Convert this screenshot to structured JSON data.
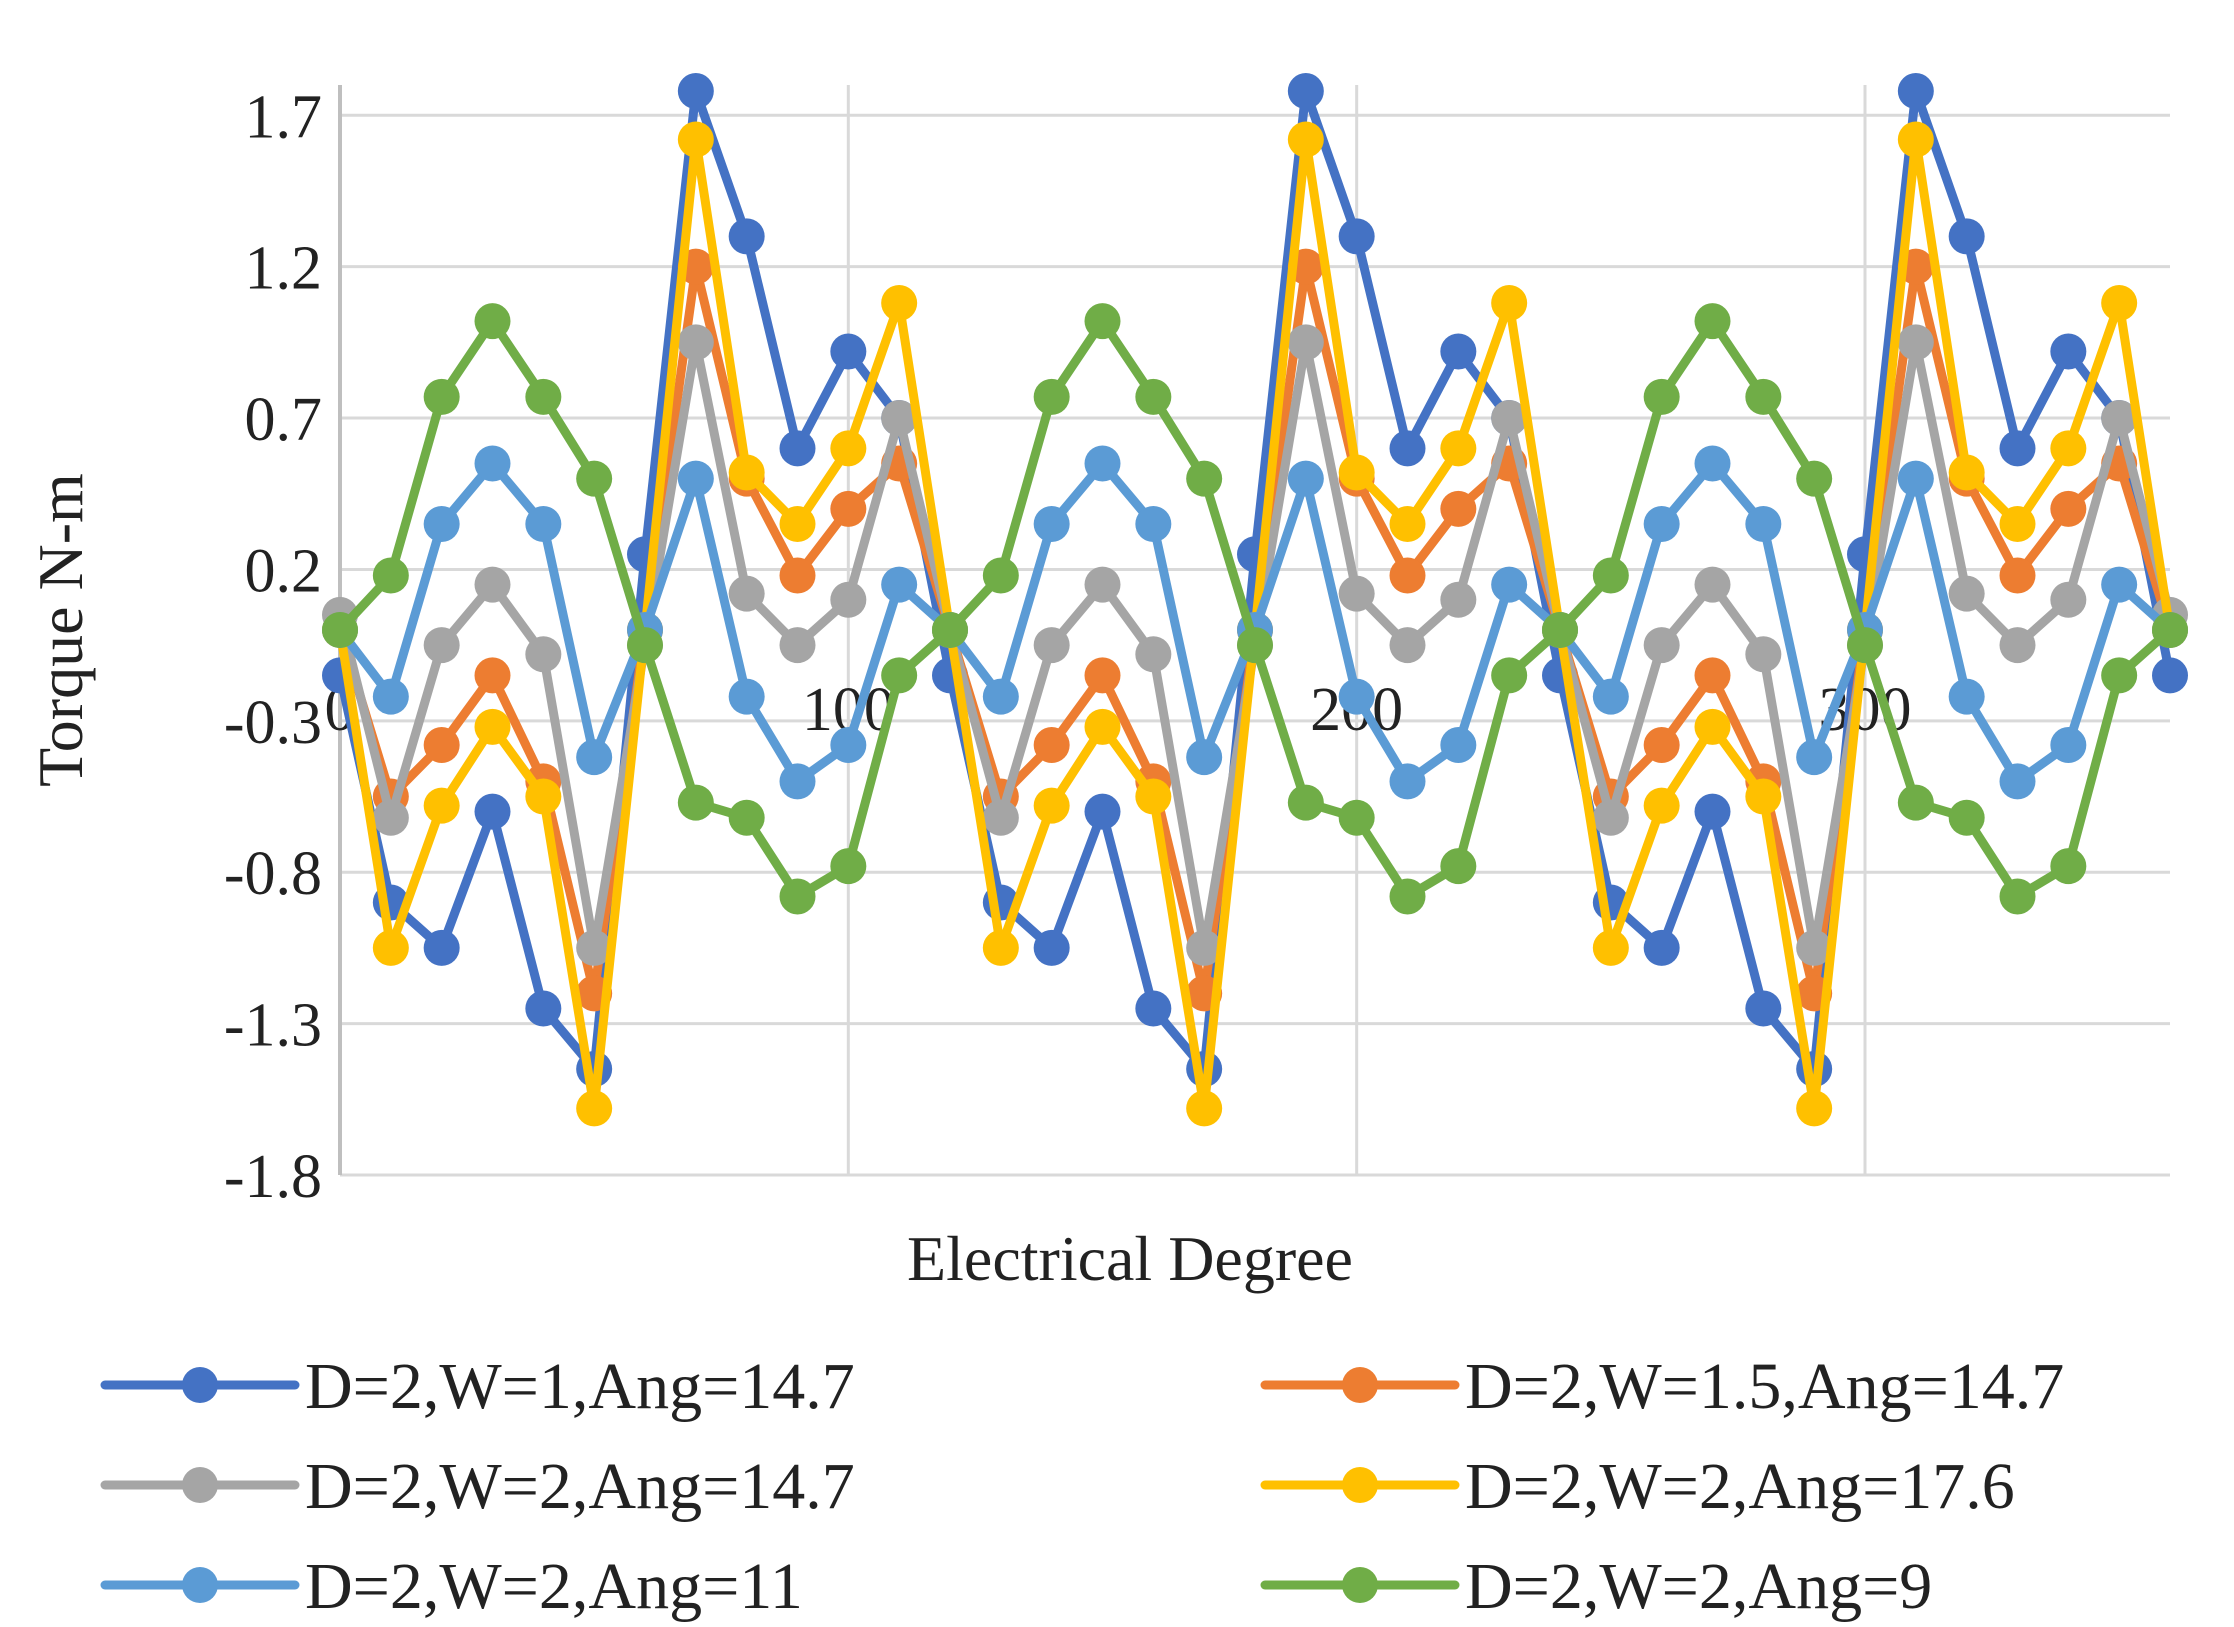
{
  "chart_data": {
    "type": "line",
    "title": "",
    "xlabel": "Electrical Degree",
    "ylabel": "Torque N-m",
    "xlim": [
      0,
      360
    ],
    "ylim": [
      -1.8,
      1.8
    ],
    "xticks": [
      0,
      100,
      200,
      300
    ],
    "yticks": [
      -1.8,
      -1.3,
      -0.8,
      -0.3,
      0.2,
      0.7,
      1.2,
      1.7
    ],
    "ytick_labels": [
      "-1.8",
      "-1.3",
      "-0.8",
      "-0.3",
      "0.2",
      "0.7",
      "1.2",
      "1.7"
    ],
    "xtick_labels": [
      "0",
      "100",
      "200",
      "300"
    ],
    "grid": true,
    "legend_position": "bottom",
    "x": [
      0,
      10,
      20,
      30,
      40,
      50,
      60,
      70,
      80,
      90,
      100,
      110,
      120,
      130,
      140,
      150,
      160,
      170,
      180,
      190,
      200,
      210,
      220,
      230,
      240,
      250,
      260,
      270,
      280,
      290,
      300,
      310,
      320,
      330,
      340,
      350,
      360
    ],
    "series": [
      {
        "name": "D=2,W=1,Ang=14.7",
        "color": "#4472C4",
        "values": [
          -0.15,
          -0.9,
          -1.05,
          -0.6,
          -1.25,
          -1.45,
          0.25,
          1.78,
          1.3,
          0.6,
          0.92,
          0.7,
          -0.15,
          -0.9,
          -1.05,
          -0.6,
          -1.25,
          -1.45,
          0.25,
          1.78,
          1.3,
          0.6,
          0.92,
          0.7,
          -0.15,
          -0.9,
          -1.05,
          -0.6,
          -1.25,
          -1.45,
          0.25,
          1.78,
          1.3,
          0.6,
          0.92,
          0.7,
          -0.15
        ]
      },
      {
        "name": "D=2,W=1.5,Ang=14.7",
        "color": "#ED7D31",
        "values": [
          0.0,
          -0.55,
          -0.38,
          -0.15,
          -0.5,
          -1.2,
          0.0,
          1.2,
          0.5,
          0.18,
          0.4,
          0.55,
          0.0,
          -0.55,
          -0.38,
          -0.15,
          -0.5,
          -1.2,
          0.0,
          1.2,
          0.5,
          0.18,
          0.4,
          0.55,
          0.0,
          -0.55,
          -0.38,
          -0.15,
          -0.5,
          -1.2,
          0.0,
          1.2,
          0.5,
          0.18,
          0.4,
          0.55,
          0.0
        ]
      },
      {
        "name": "D=2,W=2,Ang=14.7",
        "color": "#A5A5A5",
        "values": [
          0.05,
          -0.62,
          -0.05,
          0.15,
          -0.08,
          -1.05,
          -0.05,
          0.95,
          0.12,
          -0.05,
          0.1,
          0.7,
          0.0,
          -0.62,
          -0.05,
          0.15,
          -0.08,
          -1.05,
          -0.05,
          0.95,
          0.12,
          -0.05,
          0.1,
          0.7,
          0.0,
          -0.62,
          -0.05,
          0.15,
          -0.08,
          -1.05,
          -0.05,
          0.95,
          0.12,
          -0.05,
          0.1,
          0.7,
          0.05
        ]
      },
      {
        "name": "D=2,W=2,Ang=17.6",
        "color": "#FFC000",
        "values": [
          0.0,
          -1.05,
          -0.58,
          -0.32,
          -0.55,
          -1.58,
          0.0,
          1.62,
          0.52,
          0.35,
          0.6,
          1.08,
          0.0,
          -1.05,
          -0.58,
          -0.32,
          -0.55,
          -1.58,
          0.0,
          1.62,
          0.52,
          0.35,
          0.6,
          1.08,
          0.0,
          -1.05,
          -0.58,
          -0.32,
          -0.55,
          -1.58,
          0.0,
          1.62,
          0.52,
          0.35,
          0.6,
          1.08,
          0.0
        ]
      },
      {
        "name": "D=2,W=2,Ang=11",
        "color": "#5B9BD5",
        "values": [
          0.0,
          -0.22,
          0.35,
          0.55,
          0.35,
          -0.42,
          0.0,
          0.5,
          -0.22,
          -0.5,
          -0.38,
          0.15,
          0.0,
          -0.22,
          0.35,
          0.55,
          0.35,
          -0.42,
          0.0,
          0.5,
          -0.22,
          -0.5,
          -0.38,
          0.15,
          0.0,
          -0.22,
          0.35,
          0.55,
          0.35,
          -0.42,
          0.0,
          0.5,
          -0.22,
          -0.5,
          -0.38,
          0.15,
          0.0
        ]
      },
      {
        "name": "D=2,W=2,Ang=9",
        "color": "#70AD47",
        "values": [
          0.0,
          0.18,
          0.77,
          1.02,
          0.77,
          0.5,
          -0.05,
          -0.57,
          -0.62,
          -0.88,
          -0.78,
          -0.15,
          0.0,
          0.18,
          0.77,
          1.02,
          0.77,
          0.5,
          -0.05,
          -0.57,
          -0.62,
          -0.88,
          -0.78,
          -0.15,
          0.0,
          0.18,
          0.77,
          1.02,
          0.77,
          0.5,
          -0.05,
          -0.57,
          -0.62,
          -0.88,
          -0.78,
          -0.15,
          0.0
        ]
      }
    ]
  }
}
